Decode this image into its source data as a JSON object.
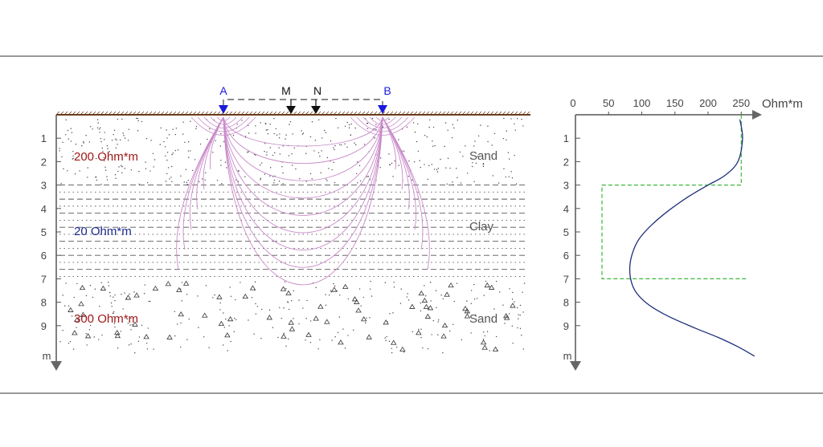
{
  "section": {
    "electrodes": [
      {
        "label": "A",
        "color": "#1a1adb"
      },
      {
        "label": "M",
        "color": "#111111"
      },
      {
        "label": "N",
        "color": "#111111"
      },
      {
        "label": "B",
        "color": "#1a1adb"
      }
    ],
    "depth_ticks": [
      "1",
      "2",
      "3",
      "4",
      "5",
      "6",
      "7",
      "8",
      "9"
    ],
    "depth_unit": "m",
    "layers": [
      {
        "resistivity_label": "200 Ohm*m",
        "material": "Sand",
        "color": "#a01818",
        "top_m": 0,
        "bottom_m": 3
      },
      {
        "resistivity_label": "20 Ohm*m",
        "material": "Clay",
        "color": "#1c2a8c",
        "top_m": 3,
        "bottom_m": 7
      },
      {
        "resistivity_label": "300 Ohm*m",
        "material": "Sand",
        "color": "#a01818",
        "top_m": 7,
        "bottom_m": 10
      }
    ],
    "current_line_color": "#c98ac9"
  },
  "chart_data": {
    "type": "line",
    "x_axis": {
      "unit_label": "Ohm*m",
      "ticks": [
        "0",
        "50",
        "100",
        "150",
        "200",
        "250"
      ],
      "range": [
        0,
        270
      ],
      "position": "top"
    },
    "y_axis": {
      "unit_label": "m",
      "ticks": [
        "1",
        "2",
        "3",
        "4",
        "5",
        "6",
        "7",
        "8",
        "9"
      ],
      "range": [
        0,
        10.2
      ],
      "inverted": true
    },
    "series": [
      {
        "style": "dashed",
        "color": "#3cb83c",
        "points": [
          [
            250,
            0
          ],
          [
            250,
            3
          ],
          [
            40,
            3
          ],
          [
            40,
            7
          ],
          [
            260,
            7
          ]
        ]
      },
      {
        "style": "solid",
        "color": "#1f2f7a",
        "points": [
          [
            248,
            0.2
          ],
          [
            252,
            1.0
          ],
          [
            245,
            2.0
          ],
          [
            225,
            2.6
          ],
          [
            200,
            3.0
          ],
          [
            170,
            3.5
          ],
          [
            140,
            4.1
          ],
          [
            115,
            4.7
          ],
          [
            96,
            5.3
          ],
          [
            86,
            5.9
          ],
          [
            82,
            6.5
          ],
          [
            84,
            7.1
          ],
          [
            92,
            7.6
          ],
          [
            110,
            8.1
          ],
          [
            140,
            8.6
          ],
          [
            180,
            9.1
          ],
          [
            215,
            9.5
          ],
          [
            245,
            9.9
          ],
          [
            270,
            10.3
          ]
        ]
      }
    ]
  }
}
